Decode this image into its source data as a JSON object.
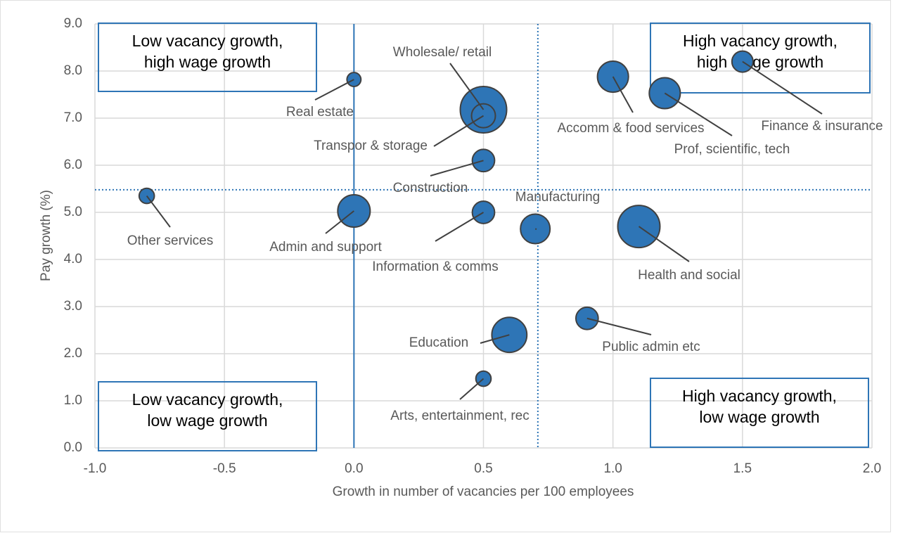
{
  "chart_data": {
    "type": "bubble",
    "x_label": "Growth in number of vacancies per 100 employees",
    "y_label": "Pay growth (%)",
    "labels": [
      "Other services",
      "Real estate",
      "Admin and support",
      "Wholesale/ retail",
      "Transpor & storage",
      "Construction",
      "Information & comms",
      "Manufacturing",
      "Health and social",
      "Accomm & food services",
      "Prof, scientific, tech",
      "Finance & insurance",
      "Public admin etc",
      "Education",
      "Arts, entertainment, rec"
    ],
    "x": [
      -0.8,
      0.0,
      0.0,
      0.5,
      0.5,
      0.5,
      0.5,
      0.7,
      1.1,
      1.0,
      1.2,
      1.5,
      0.9,
      0.6,
      0.5
    ],
    "values": [
      5.35,
      7.82,
      5.03,
      7.18,
      7.05,
      6.1,
      5.0,
      4.65,
      4.7,
      7.88,
      7.53,
      8.2,
      2.75,
      2.4,
      1.47
    ],
    "sizes": [
      13,
      11,
      59,
      121,
      32,
      28,
      28,
      49,
      100,
      54,
      54,
      25,
      28,
      69,
      13
    ],
    "color": "#2e75b6",
    "xlim": [
      -1.0,
      2.0
    ],
    "ylim": [
      0.0,
      9.0
    ],
    "xticks": [
      {
        "value": -1,
        "label": "-1.0"
      },
      {
        "value": -0.5,
        "label": "-0.5"
      },
      {
        "value": 0,
        "label": "0.0"
      },
      {
        "value": 0.5,
        "label": "0.5"
      },
      {
        "value": 1,
        "label": "1.0"
      },
      {
        "value": 1.5,
        "label": "1.5"
      },
      {
        "value": 2,
        "label": "2.0"
      }
    ],
    "yticks": [
      {
        "value": 0,
        "label": "0.0"
      },
      {
        "value": 1,
        "label": "1.0"
      },
      {
        "value": 2,
        "label": "2.0"
      },
      {
        "value": 3,
        "label": "3.0"
      },
      {
        "value": 4,
        "label": "4.0"
      },
      {
        "value": 5,
        "label": "5.0"
      },
      {
        "value": 6,
        "label": "6.0"
      },
      {
        "value": 7,
        "label": "7.0"
      },
      {
        "value": 8,
        "label": "8.0"
      },
      {
        "value": 9,
        "label": "9.0"
      }
    ],
    "grid": true,
    "reference_lines": [
      {
        "axis": "x",
        "value": 0,
        "style": "solid"
      },
      {
        "axis": "x",
        "value": 0.71,
        "style": "dotted"
      },
      {
        "axis": "y",
        "value": 5.48,
        "style": "dotted"
      }
    ],
    "annotations": [
      {
        "lines": [
          "Low vacancy growth,",
          "high wage growth"
        ]
      },
      {
        "lines": [
          "High vacancy growth,",
          "high wage growth"
        ]
      },
      {
        "lines": [
          "Low vacancy growth,",
          "low wage growth"
        ]
      },
      {
        "lines": [
          "High vacancy growth,",
          "low wage growth"
        ]
      }
    ]
  }
}
